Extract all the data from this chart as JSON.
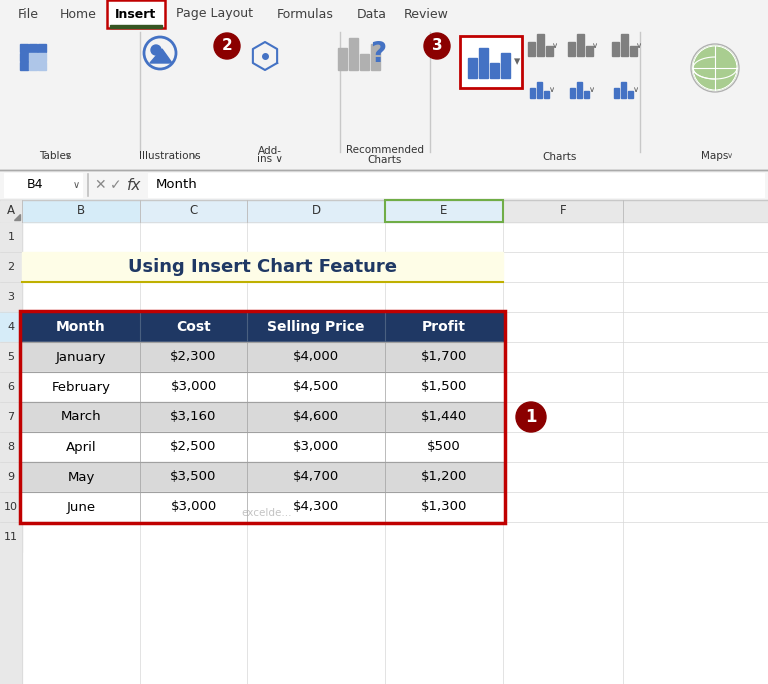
{
  "title_text": "Using Insert Chart Feature",
  "title_bg": "#FEFDE7",
  "title_color": "#1F3864",
  "title_border": "#BFB000",
  "header_bg": "#1F3864",
  "header_text_color": "#FFFFFF",
  "row_bg_light": "#D9D9D9",
  "row_bg_white": "#FFFFFF",
  "headers": [
    "Month",
    "Cost",
    "Selling Price",
    "Profit"
  ],
  "rows": [
    [
      "January",
      "$2,300",
      "$4,000",
      "$1,700"
    ],
    [
      "February",
      "$3,000",
      "$4,500",
      "$1,500"
    ],
    [
      "March",
      "$3,160",
      "$4,600",
      "$1,440"
    ],
    [
      "April",
      "$2,500",
      "$3,000",
      "$500"
    ],
    [
      "May",
      "$3,500",
      "$4,700",
      "$1,200"
    ],
    [
      "June",
      "$3,000",
      "$4,300",
      "$1,300"
    ]
  ],
  "ribbon_bg": "#F3F3F3",
  "ribbon_tabs": [
    "File",
    "Home",
    "Insert",
    "Page Layout",
    "Formulas",
    "Data",
    "Review"
  ],
  "ribbon_tab_active": "Insert",
  "formula_bar_cell": "B4",
  "formula_bar_value": "Month",
  "col_labels": [
    "A",
    "B",
    "C",
    "D",
    "E",
    "F"
  ],
  "row_labels": [
    "1",
    "2",
    "3",
    "4",
    "5",
    "6",
    "7",
    "8",
    "9",
    "10",
    "11"
  ],
  "table_border_color": "#C00000",
  "badge_color": "#8B0000",
  "badge_text_color": "#FFFFFF",
  "fig_bg": "#FFFFFF",
  "tab_underline_color": "#375623",
  "active_tab_border": "#C00000",
  "col_header_highlight": "#D6E4F0",
  "row_header_highlight": "#D6E4F0",
  "watermark": "excelde...",
  "watermark_color": "#AAAAAA"
}
